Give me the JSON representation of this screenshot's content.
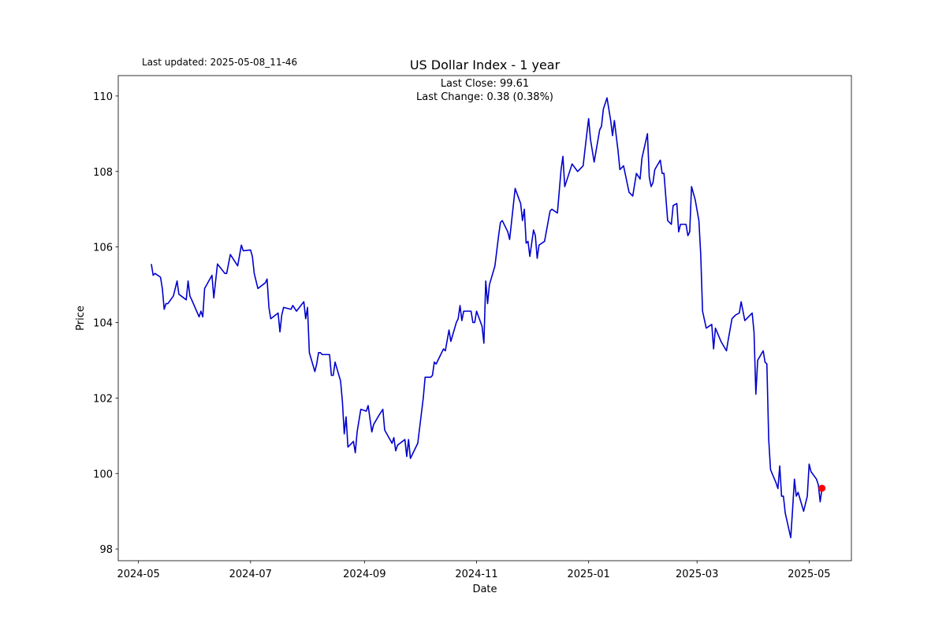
{
  "chart_data": {
    "type": "line",
    "title": "US Dollar Index - 1 year",
    "annotations": [
      "Last updated: 2025-05-08_11-46",
      "Last Close: 99.61",
      "Last Change: 0.38 (0.38%)"
    ],
    "xlabel": "Date",
    "ylabel": "Price",
    "x": [
      "2024-05-08",
      "2024-05-09",
      "2024-05-10",
      "2024-05-13",
      "2024-05-14",
      "2024-05-15",
      "2024-05-16",
      "2024-05-17",
      "2024-05-20",
      "2024-05-22",
      "2024-05-23",
      "2024-05-27",
      "2024-05-28",
      "2024-05-29",
      "2024-05-30",
      "2024-06-03",
      "2024-06-04",
      "2024-06-05",
      "2024-06-06",
      "2024-06-10",
      "2024-06-11",
      "2024-06-13",
      "2024-06-17",
      "2024-06-18",
      "2024-06-20",
      "2024-06-24",
      "2024-06-26",
      "2024-06-27",
      "2024-07-01",
      "2024-07-02",
      "2024-07-03",
      "2024-07-05",
      "2024-07-09",
      "2024-07-10",
      "2024-07-11",
      "2024-07-12",
      "2024-07-16",
      "2024-07-17",
      "2024-07-18",
      "2024-07-19",
      "2024-07-23",
      "2024-07-24",
      "2024-07-26",
      "2024-07-30",
      "2024-07-31",
      "2024-08-01",
      "2024-08-02",
      "2024-08-05",
      "2024-08-06",
      "2024-08-07",
      "2024-08-08",
      "2024-08-09",
      "2024-08-13",
      "2024-08-14",
      "2024-08-15",
      "2024-08-16",
      "2024-08-19",
      "2024-08-20",
      "2024-08-21",
      "2024-08-22",
      "2024-08-23",
      "2024-08-26",
      "2024-08-27",
      "2024-08-28",
      "2024-08-30",
      "2024-09-02",
      "2024-09-03",
      "2024-09-05",
      "2024-09-06",
      "2024-09-09",
      "2024-09-11",
      "2024-09-12",
      "2024-09-16",
      "2024-09-17",
      "2024-09-18",
      "2024-09-19",
      "2024-09-23",
      "2024-09-24",
      "2024-09-25",
      "2024-09-26",
      "2024-09-30",
      "2024-10-02",
      "2024-10-03",
      "2024-10-04",
      "2024-10-07",
      "2024-10-08",
      "2024-10-09",
      "2024-10-10",
      "2024-10-14",
      "2024-10-15",
      "2024-10-17",
      "2024-10-18",
      "2024-10-21",
      "2024-10-22",
      "2024-10-23",
      "2024-10-24",
      "2024-10-25",
      "2024-10-29",
      "2024-10-30",
      "2024-10-31",
      "2024-11-01",
      "2024-11-04",
      "2024-11-05",
      "2024-11-06",
      "2024-11-07",
      "2024-11-08",
      "2024-11-11",
      "2024-11-13",
      "2024-11-14",
      "2024-11-15",
      "2024-11-18",
      "2024-11-19",
      "2024-11-20",
      "2024-11-22",
      "2024-11-25",
      "2024-11-26",
      "2024-11-27",
      "2024-11-28",
      "2024-11-29",
      "2024-11-30",
      "2024-12-02",
      "2024-12-03",
      "2024-12-04",
      "2024-12-05",
      "2024-12-08",
      "2024-12-11",
      "2024-12-12",
      "2024-12-15",
      "2024-12-17",
      "2024-12-18",
      "2024-12-19",
      "2024-12-21",
      "2024-12-23",
      "2024-12-26",
      "2024-12-29",
      "2024-12-31",
      "2025-01-01",
      "2025-01-02",
      "2025-01-04",
      "2025-01-07",
      "2025-01-08",
      "2025-01-09",
      "2025-01-11",
      "2025-01-13",
      "2025-01-14",
      "2025-01-15",
      "2025-01-17",
      "2025-01-18",
      "2025-01-20",
      "2025-01-23",
      "2025-01-25",
      "2025-01-27",
      "2025-01-29",
      "2025-01-30",
      "2025-02-02",
      "2025-02-03",
      "2025-02-04",
      "2025-02-05",
      "2025-02-06",
      "2025-02-09",
      "2025-02-10",
      "2025-02-11",
      "2025-02-13",
      "2025-02-15",
      "2025-02-16",
      "2025-02-18",
      "2025-02-19",
      "2025-02-20",
      "2025-02-23",
      "2025-02-24",
      "2025-02-25",
      "2025-02-26",
      "2025-02-28",
      "2025-03-02",
      "2025-03-03",
      "2025-03-04",
      "2025-03-06",
      "2025-03-09",
      "2025-03-10",
      "2025-03-11",
      "2025-03-14",
      "2025-03-17",
      "2025-03-18",
      "2025-03-20",
      "2025-03-22",
      "2025-03-24",
      "2025-03-25",
      "2025-03-27",
      "2025-03-31",
      "2025-04-01",
      "2025-04-02",
      "2025-04-03",
      "2025-04-06",
      "2025-04-07",
      "2025-04-08",
      "2025-04-09",
      "2025-04-10",
      "2025-04-13",
      "2025-04-14",
      "2025-04-15",
      "2025-04-16",
      "2025-04-17",
      "2025-04-18",
      "2025-04-21",
      "2025-04-22",
      "2025-04-23",
      "2025-04-24",
      "2025-04-25",
      "2025-04-28",
      "2025-04-30",
      "2025-05-01",
      "2025-05-02",
      "2025-05-05",
      "2025-05-06",
      "2025-05-07",
      "2025-05-08"
    ],
    "series": [
      {
        "color": "#0000cd",
        "marker_color": "#ff0000",
        "values": [
          105.55,
          105.25,
          105.3,
          105.2,
          104.9,
          104.35,
          104.5,
          104.5,
          104.7,
          105.1,
          104.75,
          104.6,
          105.1,
          104.7,
          104.6,
          104.15,
          104.3,
          104.15,
          104.9,
          105.25,
          104.65,
          105.55,
          105.3,
          105.3,
          105.8,
          105.5,
          106.05,
          105.9,
          105.92,
          105.75,
          105.3,
          104.9,
          105.05,
          105.15,
          104.4,
          104.1,
          104.25,
          103.75,
          104.2,
          104.4,
          104.35,
          104.45,
          104.3,
          104.55,
          104.1,
          104.4,
          103.2,
          102.7,
          102.9,
          103.2,
          103.2,
          103.15,
          103.15,
          102.6,
          102.6,
          102.95,
          102.45,
          101.9,
          101.05,
          101.5,
          100.7,
          100.85,
          100.55,
          101.1,
          101.7,
          101.65,
          101.8,
          101.1,
          101.3,
          101.55,
          101.7,
          101.15,
          100.8,
          100.95,
          100.6,
          100.75,
          100.9,
          100.45,
          100.9,
          100.4,
          100.8,
          101.6,
          102.0,
          102.55,
          102.55,
          102.6,
          102.95,
          102.9,
          103.3,
          103.25,
          103.8,
          103.5,
          104.0,
          104.1,
          104.45,
          104.05,
          104.3,
          104.3,
          104.0,
          104.0,
          104.3,
          103.9,
          103.45,
          105.1,
          104.5,
          105.0,
          105.5,
          106.3,
          106.65,
          106.7,
          106.4,
          106.2,
          106.65,
          107.55,
          107.15,
          106.7,
          107.0,
          106.1,
          106.15,
          105.75,
          106.45,
          106.3,
          105.7,
          106.05,
          106.15,
          106.95,
          107.0,
          106.9,
          108.05,
          108.4,
          107.6,
          107.9,
          108.2,
          108.0,
          108.15,
          109.0,
          109.4,
          108.85,
          108.25,
          109.1,
          109.2,
          109.65,
          109.95,
          109.35,
          108.95,
          109.35,
          108.55,
          108.05,
          108.15,
          107.45,
          107.35,
          107.95,
          107.8,
          108.35,
          109.0,
          107.85,
          107.6,
          107.7,
          108.05,
          108.3,
          107.95,
          107.95,
          106.7,
          106.6,
          107.1,
          107.15,
          106.4,
          106.6,
          106.6,
          106.3,
          106.4,
          107.6,
          107.25,
          106.7,
          105.8,
          104.3,
          103.85,
          103.95,
          103.3,
          103.85,
          103.5,
          103.25,
          103.55,
          104.1,
          104.2,
          104.25,
          104.55,
          104.05,
          104.25,
          103.75,
          102.1,
          103.0,
          103.25,
          102.95,
          102.9,
          100.9,
          100.1,
          99.75,
          99.6,
          100.2,
          99.4,
          99.4,
          98.95,
          98.3,
          99.05,
          99.85,
          99.4,
          99.5,
          99.0,
          99.4,
          100.25,
          100.05,
          99.85,
          99.7,
          99.25,
          99.61
        ]
      }
    ],
    "xlim": [
      "2024-04-20",
      "2025-05-24"
    ],
    "xticks": [
      {
        "value": "2024-05-01",
        "label": "2024-05"
      },
      {
        "value": "2024-07-01",
        "label": "2024-07"
      },
      {
        "value": "2024-09-01",
        "label": "2024-09"
      },
      {
        "value": "2024-11-01",
        "label": "2024-11"
      },
      {
        "value": "2025-01-01",
        "label": "2025-01"
      },
      {
        "value": "2025-03-01",
        "label": "2025-03"
      },
      {
        "value": "2025-05-01",
        "label": "2025-05"
      }
    ],
    "ylim": [
      97.69,
      110.54
    ],
    "yticks": [
      98,
      100,
      102,
      104,
      106,
      108,
      110
    ],
    "grid": false
  }
}
